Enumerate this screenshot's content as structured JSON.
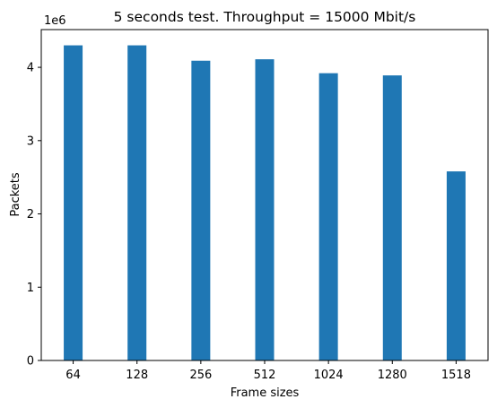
{
  "chart_data": {
    "type": "bar",
    "title": "5 seconds test. Throughput = 15000 Mbit/s",
    "xlabel": "Frame sizes",
    "ylabel": "Packets",
    "y_offset_label": "1e6",
    "y_scale": 1000000,
    "categories": [
      "64",
      "128",
      "256",
      "512",
      "1024",
      "1280",
      "1518"
    ],
    "values": [
      4300000,
      4300000,
      4090000,
      4110000,
      3920000,
      3890000,
      2580000
    ],
    "ylim": [
      0,
      4515000
    ],
    "yticks": [
      0,
      1,
      2,
      3,
      4
    ],
    "grid": false,
    "bar_color": "#1f77b4"
  }
}
